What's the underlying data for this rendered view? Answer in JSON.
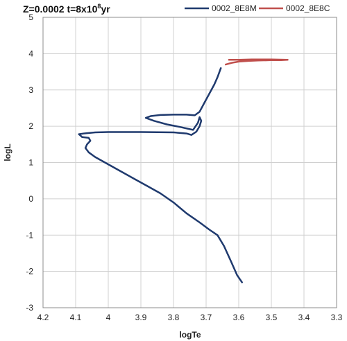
{
  "chart_data": {
    "type": "line",
    "title": "Z=0.0002 t=8x10",
    "title_sup": "8",
    "title_suffix": "yr",
    "xlabel": "logTe",
    "ylabel": "logL",
    "xlim": [
      4.2,
      3.3
    ],
    "ylim": [
      -3,
      5
    ],
    "x_reversed": true,
    "grid": true,
    "legend_position": "top-right",
    "x_ticks": [
      "4.2",
      "4.1",
      "4",
      "3.9",
      "3.8",
      "3.7",
      "3.6",
      "3.5",
      "3.4",
      "3.3"
    ],
    "y_ticks": [
      "5",
      "4",
      "3",
      "2",
      "1",
      "0",
      "-1",
      "-2",
      "-3"
    ],
    "series": [
      {
        "name": "0002_8E8M",
        "color": "#1f3a6e",
        "points": [
          [
            3.59,
            -2.3
          ],
          [
            3.605,
            -2.1
          ],
          [
            3.625,
            -1.7
          ],
          [
            3.645,
            -1.3
          ],
          [
            3.665,
            -1.0
          ],
          [
            3.69,
            -0.85
          ],
          [
            3.72,
            -0.65
          ],
          [
            3.76,
            -0.4
          ],
          [
            3.8,
            -0.1
          ],
          [
            3.84,
            0.15
          ],
          [
            3.88,
            0.35
          ],
          [
            3.92,
            0.55
          ],
          [
            3.96,
            0.75
          ],
          [
            4.0,
            0.95
          ],
          [
            4.04,
            1.15
          ],
          [
            4.06,
            1.28
          ],
          [
            4.07,
            1.4
          ],
          [
            4.065,
            1.5
          ],
          [
            4.055,
            1.6
          ],
          [
            4.06,
            1.68
          ],
          [
            4.08,
            1.7
          ],
          [
            4.09,
            1.78
          ],
          [
            4.075,
            1.8
          ],
          [
            4.04,
            1.83
          ],
          [
            4.0,
            1.84
          ],
          [
            3.9,
            1.84
          ],
          [
            3.8,
            1.83
          ],
          [
            3.76,
            1.8
          ],
          [
            3.745,
            1.76
          ],
          [
            3.73,
            1.85
          ],
          [
            3.72,
            2.0
          ],
          [
            3.715,
            2.15
          ],
          [
            3.72,
            2.25
          ],
          [
            3.725,
            2.1
          ],
          [
            3.74,
            1.9
          ],
          [
            3.78,
            1.98
          ],
          [
            3.82,
            2.05
          ],
          [
            3.86,
            2.15
          ],
          [
            3.885,
            2.23
          ],
          [
            3.87,
            2.28
          ],
          [
            3.84,
            2.31
          ],
          [
            3.8,
            2.32
          ],
          [
            3.76,
            2.32
          ],
          [
            3.735,
            2.3
          ],
          [
            3.72,
            2.4
          ],
          [
            3.705,
            2.65
          ],
          [
            3.69,
            2.9
          ],
          [
            3.675,
            3.15
          ],
          [
            3.665,
            3.35
          ],
          [
            3.655,
            3.6
          ]
        ]
      },
      {
        "name": "0002_8E8C",
        "color": "#c0504d",
        "points": [
          [
            3.64,
            3.7
          ],
          [
            3.62,
            3.75
          ],
          [
            3.6,
            3.78
          ],
          [
            3.57,
            3.8
          ],
          [
            3.54,
            3.81
          ],
          [
            3.5,
            3.82
          ],
          [
            3.47,
            3.82
          ],
          [
            3.45,
            3.83
          ],
          [
            3.5,
            3.84
          ],
          [
            3.56,
            3.84
          ],
          [
            3.6,
            3.83
          ],
          [
            3.63,
            3.83
          ]
        ]
      }
    ]
  }
}
